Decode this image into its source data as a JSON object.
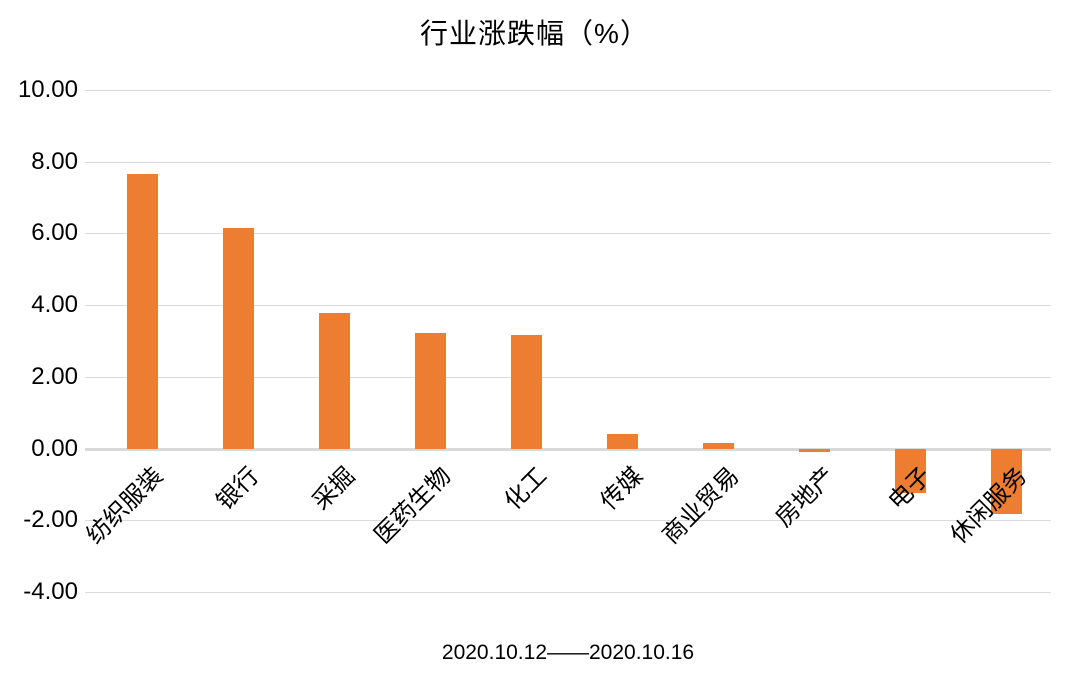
{
  "chart": {
    "background_color": "#FFFFFF",
    "text_color": "#000000",
    "gridline_color": "#DADADA",
    "axis_line_color": "#D9D9D9"
  },
  "chart_data": {
    "type": "bar",
    "title": "行业涨跌幅（%）",
    "xlabel": "2020.10.12——2020.10.16",
    "ylabel": "",
    "categories": [
      "纺织服装",
      "银行",
      "采掘",
      "医药生物",
      "化工",
      "传媒",
      "商业贸易",
      "房地产",
      "电子",
      "休闲服务"
    ],
    "values": [
      7.67,
      6.15,
      3.78,
      3.22,
      3.16,
      0.4,
      0.15,
      -0.1,
      -1.24,
      -1.83
    ],
    "bar_color": "#ED7D31",
    "ylim": [
      -4,
      10
    ],
    "y_tick_step": 2,
    "y_ticks": [
      {
        "value": 10,
        "label": "10.00"
      },
      {
        "value": 8,
        "label": "8.00"
      },
      {
        "value": 6,
        "label": "6.00"
      },
      {
        "value": 4,
        "label": "4.00"
      },
      {
        "value": 2,
        "label": "2.00"
      },
      {
        "value": 0,
        "label": "0.00"
      },
      {
        "value": -2,
        "label": "-2.00"
      },
      {
        "value": -4,
        "label": "-4.00"
      }
    ],
    "grid": true,
    "legend": false,
    "x_label_rotation_deg": 45
  }
}
